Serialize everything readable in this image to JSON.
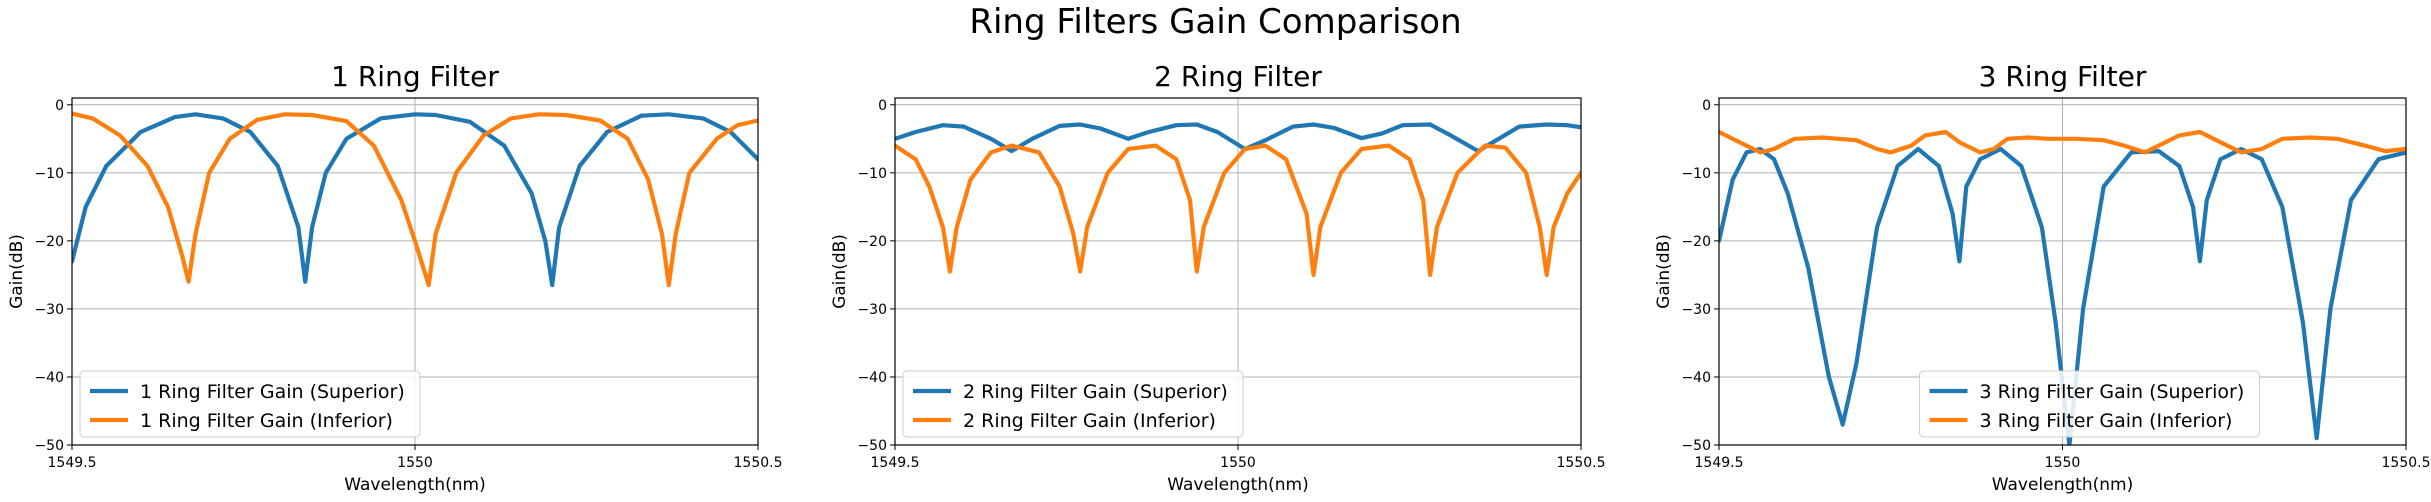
{
  "figure": {
    "suptitle": "Ring Filters Gain Comparison"
  },
  "colors": {
    "superior": "#1f77b4",
    "inferior": "#ff7f0e",
    "grid": "#b0b0b0"
  },
  "chart_data": [
    {
      "type": "line",
      "title": "1 Ring Filter",
      "xlabel": "Wavelength(nm)",
      "ylabel": "Gain(dB)",
      "xlim": [
        1549.5,
        1550.5
      ],
      "ylim": [
        -50,
        1
      ],
      "xticks": [
        1549.5,
        1550,
        1550.5
      ],
      "xtick_labels": [
        "1549.5",
        "1550",
        "1550.5"
      ],
      "yticks": [
        0,
        -10,
        -20,
        -30,
        -40,
        -50
      ],
      "grid": true,
      "legend_position": "lower-left",
      "series": [
        {
          "name": "1 Ring Filter Gain (Superior)",
          "color": "#1f77b4",
          "x": [
            1549.5,
            1549.52,
            1549.55,
            1549.6,
            1549.65,
            1549.68,
            1549.72,
            1549.76,
            1549.8,
            1549.83,
            1549.84,
            1549.85,
            1549.87,
            1549.9,
            1549.95,
            1550.0,
            1550.03,
            1550.08,
            1550.13,
            1550.17,
            1550.19,
            1550.2,
            1550.21,
            1550.24,
            1550.28,
            1550.33,
            1550.37,
            1550.42,
            1550.46,
            1550.5
          ],
          "y": [
            -23,
            -15,
            -9,
            -4,
            -1.8,
            -1.4,
            -2,
            -4,
            -9,
            -18,
            -26,
            -18,
            -10,
            -5,
            -2,
            -1.4,
            -1.5,
            -2.5,
            -6,
            -13,
            -20,
            -26.5,
            -18,
            -9,
            -4,
            -1.6,
            -1.4,
            -2,
            -4,
            -8
          ]
        },
        {
          "name": "1 Ring Filter Gain (Inferior)",
          "color": "#ff7f0e",
          "x": [
            1549.5,
            1549.53,
            1549.57,
            1549.61,
            1549.64,
            1549.66,
            1549.67,
            1549.68,
            1549.7,
            1549.73,
            1549.77,
            1549.81,
            1549.85,
            1549.9,
            1549.94,
            1549.98,
            1550.0,
            1550.02,
            1550.03,
            1550.06,
            1550.1,
            1550.14,
            1550.18,
            1550.22,
            1550.27,
            1550.31,
            1550.34,
            1550.36,
            1550.37,
            1550.38,
            1550.4,
            1550.44,
            1550.47,
            1550.5
          ],
          "y": [
            -1.3,
            -2,
            -4.5,
            -9,
            -15,
            -22,
            -26,
            -19,
            -10,
            -5,
            -2.2,
            -1.4,
            -1.5,
            -2.4,
            -6,
            -14,
            -20,
            -26.5,
            -19,
            -10,
            -4.5,
            -2,
            -1.4,
            -1.5,
            -2.3,
            -5,
            -11,
            -19,
            -26.5,
            -19,
            -10,
            -5,
            -3,
            -2.3
          ]
        }
      ]
    },
    {
      "type": "line",
      "title": "2 Ring Filter",
      "xlabel": "Wavelength(nm)",
      "ylabel": "Gain(dB)",
      "xlim": [
        1549.5,
        1550.5
      ],
      "ylim": [
        -50,
        1
      ],
      "xticks": [
        1549.5,
        1550,
        1550.5
      ],
      "xtick_labels": [
        "1549.5",
        "1550",
        "1550.5"
      ],
      "yticks": [
        0,
        -10,
        -20,
        -30,
        -40,
        -50
      ],
      "grid": true,
      "legend_position": "lower-left",
      "series": [
        {
          "name": "2 Ring Filter Gain (Superior)",
          "color": "#1f77b4",
          "x": [
            1549.5,
            1549.53,
            1549.57,
            1549.6,
            1549.64,
            1549.67,
            1549.7,
            1549.74,
            1549.77,
            1549.8,
            1549.84,
            1549.87,
            1549.91,
            1549.94,
            1549.97,
            1550.01,
            1550.04,
            1550.08,
            1550.11,
            1550.14,
            1550.18,
            1550.21,
            1550.24,
            1550.28,
            1550.31,
            1550.35,
            1550.38,
            1550.41,
            1550.45,
            1550.48,
            1550.5
          ],
          "y": [
            -5,
            -4,
            -3,
            -3.2,
            -5,
            -6.8,
            -5,
            -3.1,
            -2.9,
            -3.5,
            -5,
            -4,
            -3,
            -2.9,
            -4,
            -6.5,
            -5.2,
            -3.2,
            -2.9,
            -3.4,
            -4.9,
            -4.2,
            -3,
            -2.9,
            -4.5,
            -6.8,
            -5,
            -3.2,
            -2.9,
            -3,
            -3.3
          ]
        },
        {
          "name": "2 Ring Filter Gain (Inferior)",
          "color": "#ff7f0e",
          "x": [
            1549.5,
            1549.53,
            1549.55,
            1549.57,
            1549.58,
            1549.59,
            1549.61,
            1549.64,
            1549.67,
            1549.71,
            1549.74,
            1549.76,
            1549.77,
            1549.78,
            1549.81,
            1549.84,
            1549.88,
            1549.91,
            1549.93,
            1549.94,
            1549.95,
            1549.98,
            1550.01,
            1550.04,
            1550.07,
            1550.1,
            1550.11,
            1550.12,
            1550.15,
            1550.18,
            1550.22,
            1550.25,
            1550.27,
            1550.28,
            1550.29,
            1550.32,
            1550.36,
            1550.39,
            1550.42,
            1550.44,
            1550.45,
            1550.46,
            1550.48,
            1550.5
          ],
          "y": [
            -6,
            -8,
            -12,
            -18,
            -24.5,
            -18,
            -11,
            -7,
            -6,
            -7,
            -12,
            -19,
            -24.5,
            -18,
            -10,
            -6.5,
            -6,
            -8,
            -14,
            -24.5,
            -18,
            -10,
            -6.5,
            -6,
            -8,
            -16,
            -25,
            -18,
            -10,
            -6.5,
            -6,
            -8,
            -14,
            -25,
            -18,
            -10,
            -6,
            -6.3,
            -10,
            -18,
            -25,
            -18,
            -13,
            -10
          ]
        }
      ]
    },
    {
      "type": "line",
      "title": "3 Ring Filter",
      "xlabel": "Wavelength(nm)",
      "ylabel": "Gain(dB)",
      "xlim": [
        1549.5,
        1550.5
      ],
      "ylim": [
        -50,
        1
      ],
      "xticks": [
        1549.5,
        1550,
        1550.5
      ],
      "xtick_labels": [
        "1549.5",
        "1550",
        "1550.5"
      ],
      "yticks": [
        0,
        -10,
        -20,
        -30,
        -40,
        -50
      ],
      "grid": true,
      "legend_position": "lower-center",
      "series": [
        {
          "name": "3 Ring Filter Gain (Superior)",
          "color": "#1f77b4",
          "x": [
            1549.5,
            1549.52,
            1549.54,
            1549.56,
            1549.58,
            1549.6,
            1549.63,
            1549.66,
            1549.68,
            1549.7,
            1549.73,
            1549.76,
            1549.79,
            1549.82,
            1549.84,
            1549.85,
            1549.86,
            1549.88,
            1549.91,
            1549.94,
            1549.97,
            1549.99,
            1550.01,
            1550.03,
            1550.06,
            1550.1,
            1550.14,
            1550.17,
            1550.19,
            1550.2,
            1550.21,
            1550.23,
            1550.26,
            1550.29,
            1550.32,
            1550.35,
            1550.37,
            1550.39,
            1550.42,
            1550.46,
            1550.5
          ],
          "y": [
            -20,
            -11,
            -7,
            -6.5,
            -8,
            -13,
            -24,
            -40,
            -47,
            -38,
            -18,
            -9,
            -6.5,
            -9,
            -16,
            -23,
            -12,
            -8,
            -6.5,
            -9,
            -18,
            -32,
            -50,
            -30,
            -12,
            -7,
            -6.8,
            -9,
            -15,
            -23,
            -14,
            -8,
            -6.5,
            -8,
            -15,
            -32,
            -49,
            -30,
            -14,
            -8,
            -7
          ]
        },
        {
          "name": "3 Ring Filter Gain (Inferior)",
          "color": "#ff7f0e",
          "x": [
            1549.5,
            1549.53,
            1549.56,
            1549.58,
            1549.61,
            1549.65,
            1549.7,
            1549.73,
            1549.75,
            1549.78,
            1549.8,
            1549.83,
            1549.85,
            1549.88,
            1549.9,
            1549.92,
            1549.95,
            1549.98,
            1550.02,
            1550.06,
            1550.09,
            1550.12,
            1550.14,
            1550.17,
            1550.2,
            1550.23,
            1550.26,
            1550.29,
            1550.32,
            1550.36,
            1550.4,
            1550.44,
            1550.47,
            1550.5
          ],
          "y": [
            -4,
            -5.5,
            -7,
            -6.5,
            -5,
            -4.8,
            -5.2,
            -6.5,
            -7,
            -6,
            -4.5,
            -4,
            -5.5,
            -7,
            -6.5,
            -5,
            -4.8,
            -5,
            -5,
            -5.2,
            -6,
            -7,
            -6,
            -4.5,
            -4,
            -5.5,
            -7,
            -6.5,
            -5,
            -4.8,
            -5,
            -6,
            -6.8,
            -6.5
          ]
        }
      ]
    }
  ]
}
